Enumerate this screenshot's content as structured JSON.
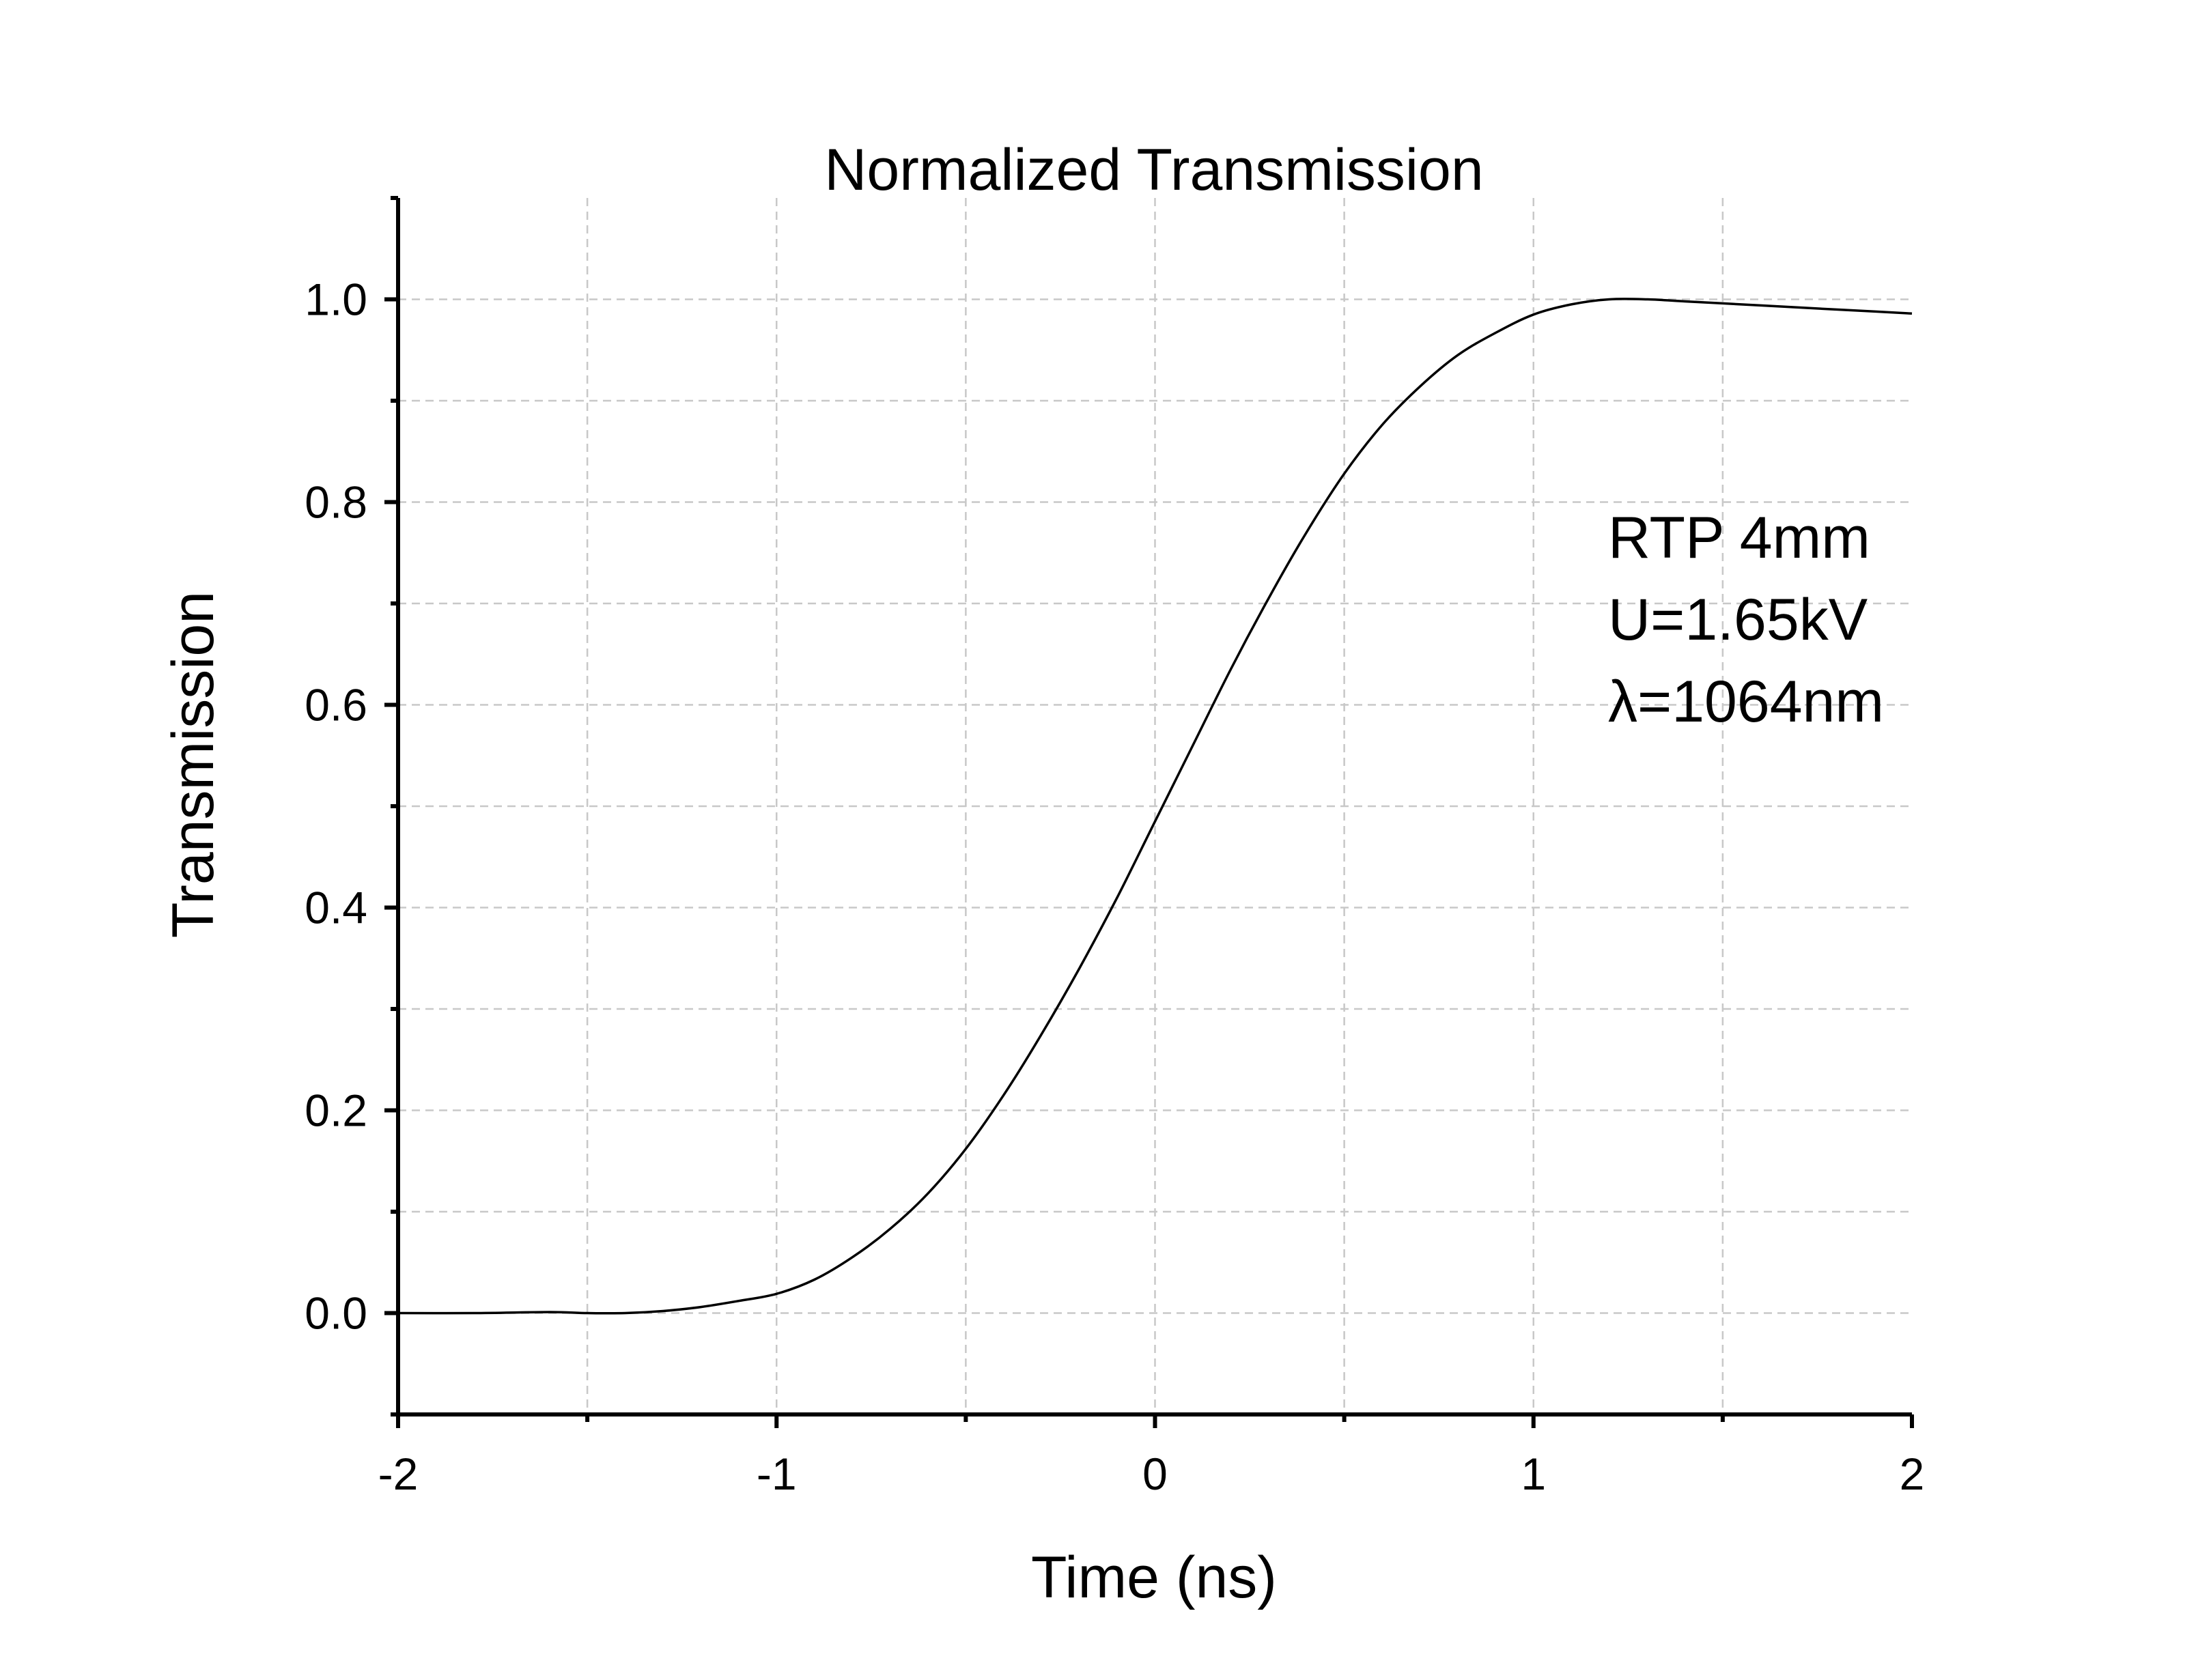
{
  "chart_data": {
    "type": "line",
    "title": "Normalized Transmission",
    "xlabel": "Time (ns)",
    "ylabel": "Transmission",
    "xlim": [
      -2,
      2
    ],
    "ylim": [
      -0.1,
      1.1
    ],
    "xticks": [
      -2,
      -1,
      0,
      1,
      2
    ],
    "xtick_labels": [
      "-2",
      "-1",
      "0",
      "1",
      "2"
    ],
    "xminor": [
      -1.5,
      -0.5,
      0.5,
      1.5
    ],
    "yticks": [
      0.0,
      0.2,
      0.4,
      0.6,
      0.8,
      1.0
    ],
    "ytick_labels": [
      "0.0",
      "0.2",
      "0.4",
      "0.6",
      "0.8",
      "1.0"
    ],
    "yminor": [
      -0.1,
      0.1,
      0.3,
      0.5,
      0.7,
      0.9,
      1.1
    ],
    "grid": true,
    "annotation": [
      "RTP 4mm",
      "U=1.65kV",
      "λ=1064nm"
    ],
    "line_color": "#000000",
    "series": [
      {
        "x": [
          -2.0,
          -1.8,
          -1.6,
          -1.5,
          -1.4,
          -1.3,
          -1.2,
          -1.1,
          -1.0,
          -0.9,
          -0.8,
          -0.7,
          -0.6,
          -0.5,
          -0.4,
          -0.3,
          -0.2,
          -0.1,
          0.0,
          0.1,
          0.2,
          0.3,
          0.4,
          0.5,
          0.6,
          0.7,
          0.8,
          0.9,
          1.0,
          1.1,
          1.2,
          1.3,
          1.4,
          1.5,
          1.6,
          1.7,
          1.8,
          1.9,
          2.0
        ],
        "y": [
          0.0,
          0.0,
          0.001,
          0.0,
          0.0,
          0.002,
          0.006,
          0.012,
          0.019,
          0.033,
          0.055,
          0.083,
          0.118,
          0.162,
          0.215,
          0.275,
          0.34,
          0.41,
          0.485,
          0.56,
          0.635,
          0.705,
          0.77,
          0.828,
          0.876,
          0.914,
          0.945,
          0.967,
          0.985,
          0.995,
          1.0,
          1.0,
          0.998,
          0.996,
          0.994,
          0.992,
          0.99,
          0.988,
          0.986
        ]
      }
    ]
  }
}
